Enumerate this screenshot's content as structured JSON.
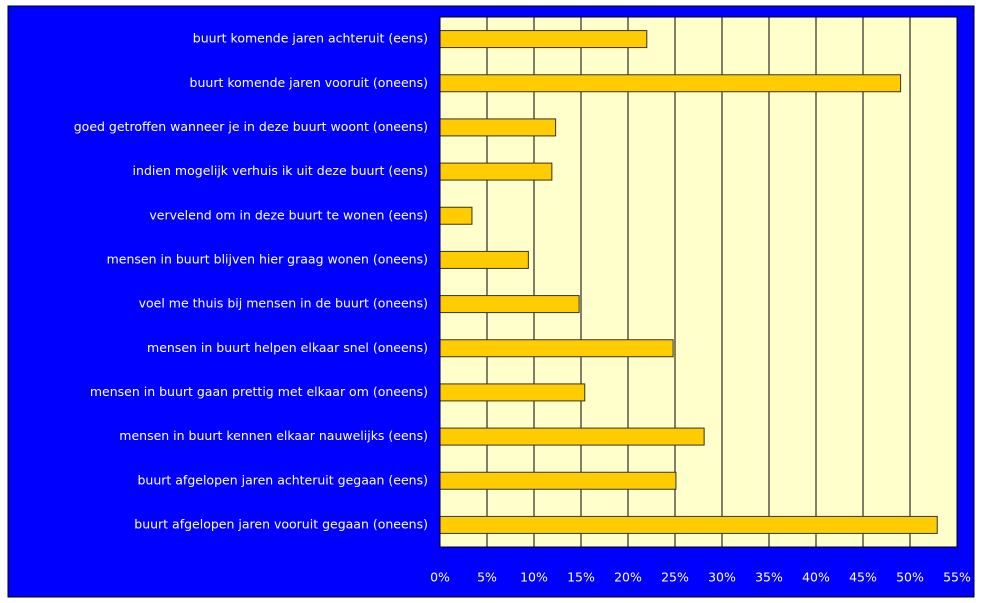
{
  "chart_data": {
    "type": "barh",
    "categories": [
      "buurt komende jaren achteruit (eens)",
      "buurt komende jaren vooruit (oneens)",
      "goed getroffen wanneer je in deze buurt woont (oneens)",
      "indien mogelijk verhuis ik uit deze buurt (eens)",
      "vervelend om in deze buurt te wonen (eens)",
      "mensen in buurt blijven hier graag wonen (oneens)",
      "voel me thuis bij mensen in de buurt (oneens)",
      "mensen in buurt helpen elkaar snel (oneens)",
      "mensen in buurt gaan prettig met elkaar om (oneens)",
      "mensen in buurt kennen elkaar nauwelijks (eens)",
      "buurt afgelopen jaren achteruit gegaan (eens)",
      "buurt afgelopen jaren vooruit gegaan (oneens)"
    ],
    "values": [
      22.0,
      49.0,
      12.3,
      11.9,
      3.4,
      9.4,
      14.8,
      24.8,
      15.4,
      28.1,
      25.1,
      52.9
    ],
    "color": "#ffcc00",
    "xlim": [
      0,
      55
    ],
    "xticks": [
      {
        "value": 0,
        "label": "0%"
      },
      {
        "value": 5,
        "label": "5%"
      },
      {
        "value": 10,
        "label": "10%"
      },
      {
        "value": 15,
        "label": "15%"
      },
      {
        "value": 20,
        "label": "20%"
      },
      {
        "value": 25,
        "label": "25%"
      },
      {
        "value": 30,
        "label": "30%"
      },
      {
        "value": 35,
        "label": "35%"
      },
      {
        "value": 40,
        "label": "40%"
      },
      {
        "value": 45,
        "label": "45%"
      },
      {
        "value": 50,
        "label": "50%"
      },
      {
        "value": 55,
        "label": "55%"
      }
    ],
    "grid": true
  }
}
